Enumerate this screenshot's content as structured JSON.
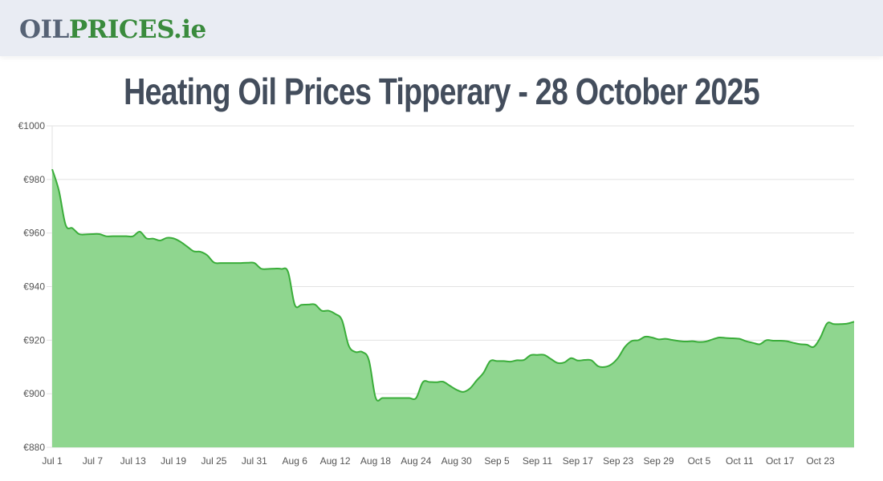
{
  "header": {
    "logo_part1": "OIL",
    "logo_part2": "PRICES.ie"
  },
  "page": {
    "title": "Heating Oil Prices Tipperary - 28 October 2025"
  },
  "colors": {
    "header_bg": "#e9ecf3",
    "logo_grey": "#566275",
    "logo_green": "#3a8b3d",
    "title": "#434d5c",
    "line": "#3aad3a",
    "fill": "#8fd68f"
  },
  "chart_data": {
    "type": "area",
    "title": "Heating Oil Prices Tipperary - 28 October 2025",
    "xlabel": "",
    "ylabel": "",
    "currency": "€",
    "ylim": [
      880,
      1000
    ],
    "yticks": [
      880,
      900,
      920,
      940,
      960,
      980,
      1000
    ],
    "ytick_labels": [
      "€880",
      "€900",
      "€920",
      "€940",
      "€960",
      "€980",
      "€1000"
    ],
    "xtick_labels": [
      "Jul 1",
      "Jul 7",
      "Jul 13",
      "Jul 19",
      "Jul 25",
      "Jul 31",
      "Aug 6",
      "Aug 12",
      "Aug 18",
      "Aug 24",
      "Aug 30",
      "Sep 5",
      "Sep 11",
      "Sep 17",
      "Sep 23",
      "Sep 29",
      "Oct 5",
      "Oct 11",
      "Oct 17",
      "Oct 23"
    ],
    "grid": true,
    "legend": false,
    "x": [
      "Jul 1",
      "Jul 2",
      "Jul 3",
      "Jul 4",
      "Jul 5",
      "Jul 6",
      "Jul 7",
      "Jul 8",
      "Jul 9",
      "Jul 10",
      "Jul 11",
      "Jul 12",
      "Jul 13",
      "Jul 14",
      "Jul 15",
      "Jul 16",
      "Jul 17",
      "Jul 18",
      "Jul 19",
      "Jul 20",
      "Jul 21",
      "Jul 22",
      "Jul 23",
      "Jul 24",
      "Jul 25",
      "Jul 26",
      "Jul 27",
      "Jul 28",
      "Jul 29",
      "Jul 30",
      "Jul 31",
      "Aug 1",
      "Aug 2",
      "Aug 3",
      "Aug 4",
      "Aug 5",
      "Aug 6",
      "Aug 7",
      "Aug 8",
      "Aug 9",
      "Aug 10",
      "Aug 11",
      "Aug 12",
      "Aug 13",
      "Aug 14",
      "Aug 15",
      "Aug 16",
      "Aug 17",
      "Aug 18",
      "Aug 19",
      "Aug 20",
      "Aug 21",
      "Aug 22",
      "Aug 23",
      "Aug 24",
      "Aug 25",
      "Aug 26",
      "Aug 27",
      "Aug 28",
      "Aug 29",
      "Aug 30",
      "Aug 31",
      "Sep 1",
      "Sep 2",
      "Sep 3",
      "Sep 4",
      "Sep 5",
      "Sep 6",
      "Sep 7",
      "Sep 8",
      "Sep 9",
      "Sep 10",
      "Sep 11",
      "Sep 12",
      "Sep 13",
      "Sep 14",
      "Sep 15",
      "Sep 16",
      "Sep 17",
      "Sep 18",
      "Sep 19",
      "Sep 20",
      "Sep 21",
      "Sep 22",
      "Sep 23",
      "Sep 24",
      "Sep 25",
      "Sep 26",
      "Sep 27",
      "Sep 28",
      "Sep 29",
      "Sep 30",
      "Oct 1",
      "Oct 2",
      "Oct 3",
      "Oct 4",
      "Oct 5",
      "Oct 6",
      "Oct 7",
      "Oct 8",
      "Oct 9",
      "Oct 10",
      "Oct 11",
      "Oct 12",
      "Oct 13",
      "Oct 14",
      "Oct 15",
      "Oct 16",
      "Oct 17",
      "Oct 18",
      "Oct 19",
      "Oct 20",
      "Oct 21",
      "Oct 22",
      "Oct 23",
      "Oct 24",
      "Oct 25",
      "Oct 26",
      "Oct 27",
      "Oct 28"
    ],
    "series": [
      {
        "name": "Heating Oil Price",
        "values": [
          983.8,
          975.8,
          963.0,
          961.8,
          959.6,
          959.5,
          959.6,
          959.6,
          958.8,
          958.8,
          958.8,
          958.8,
          958.8,
          960.5,
          958.0,
          957.9,
          957.2,
          958.2,
          958.0,
          956.8,
          955.0,
          953.2,
          953.0,
          951.7,
          949.0,
          948.8,
          948.8,
          948.8,
          948.8,
          948.9,
          948.8,
          946.7,
          946.6,
          946.7,
          946.6,
          945.5,
          933.2,
          933.2,
          933.3,
          933.3,
          931.0,
          931.0,
          929.8,
          927.5,
          918.0,
          915.6,
          915.6,
          912.5,
          898.5,
          898.4,
          898.4,
          898.4,
          898.4,
          898.4,
          898.4,
          904.3,
          904.4,
          904.3,
          904.5,
          903.0,
          901.5,
          900.7,
          902.0,
          905.0,
          907.8,
          912.2,
          912.2,
          912.2,
          912.0,
          912.5,
          912.6,
          914.4,
          914.5,
          914.5,
          913.0,
          911.5,
          911.7,
          913.3,
          912.4,
          912.6,
          912.5,
          910.3,
          910.0,
          911.0,
          913.5,
          917.5,
          919.7,
          920.0,
          921.3,
          921.0,
          920.3,
          920.5,
          920.1,
          919.7,
          919.5,
          919.6,
          919.3,
          919.5,
          920.3,
          921.0,
          920.8,
          920.7,
          920.5,
          919.6,
          919.0,
          918.5,
          920.0,
          919.8,
          919.8,
          919.6,
          919.0,
          918.5,
          918.3,
          917.5,
          921.0,
          926.3,
          926.0,
          926.0,
          926.2,
          926.9
        ]
      }
    ]
  }
}
